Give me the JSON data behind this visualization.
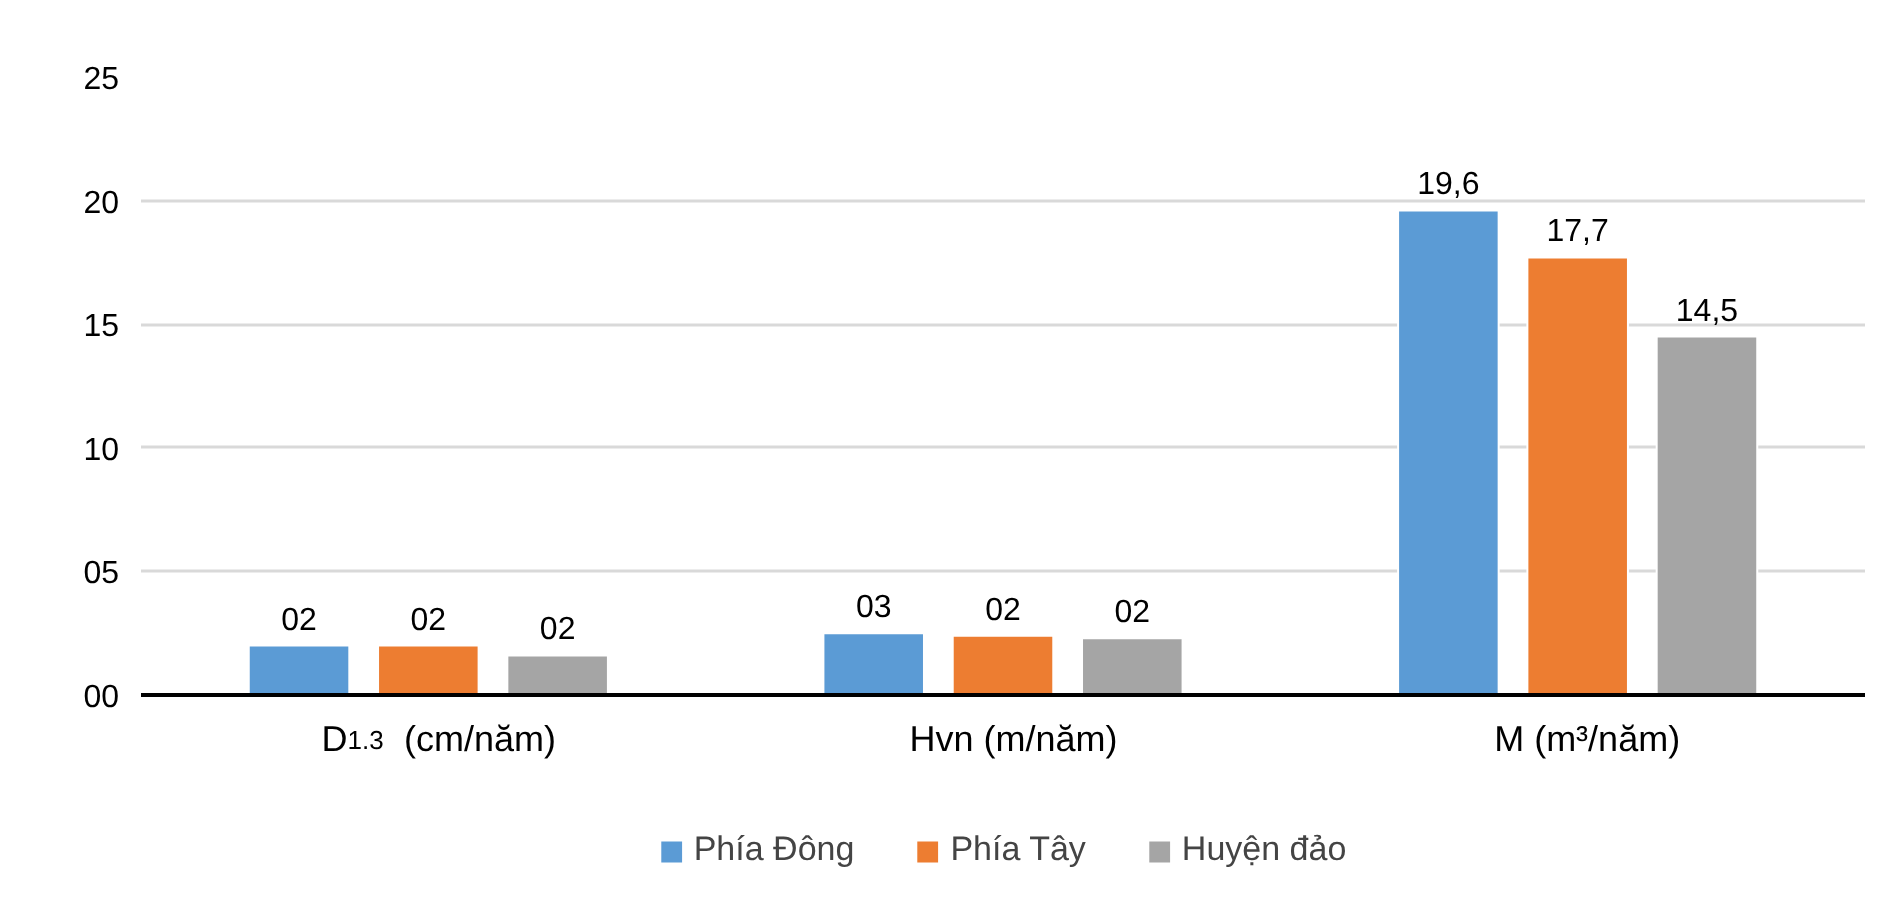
{
  "chart_data": {
    "type": "bar",
    "categories": [
      "D$_{1.3}$  (cm/năm)",
      "Hvn (m/năm)",
      "M (m³/năm)"
    ],
    "series": [
      {
        "name": "Phía Đông",
        "color": "#5b9bd5",
        "values": [
          2.0,
          2.5,
          19.6
        ],
        "value_labels": [
          "02",
          "03",
          "19,6"
        ]
      },
      {
        "name": "Phía Tây",
        "color": "#ed7d31",
        "values": [
          2.0,
          2.4,
          17.7
        ],
        "value_labels": [
          "02",
          "02",
          "17,7"
        ]
      },
      {
        "name": "Huyện đảo",
        "color": "#a5a5a5",
        "values": [
          1.6,
          2.3,
          14.5
        ],
        "value_labels": [
          "02",
          "02",
          "14,5"
        ]
      }
    ],
    "ylim": [
      0,
      25
    ],
    "yticks": [
      {
        "value": 0,
        "label": "00"
      },
      {
        "value": 5,
        "label": "05"
      },
      10,
      15,
      20,
      25
    ],
    "grid": "y",
    "legend": "bottom"
  }
}
